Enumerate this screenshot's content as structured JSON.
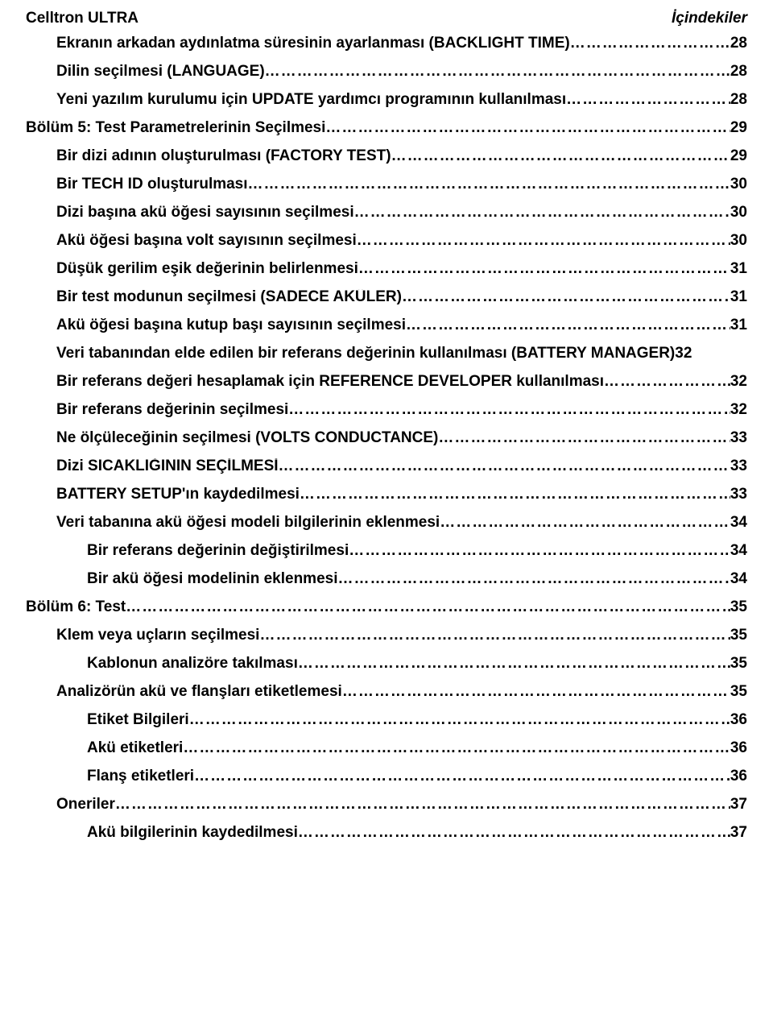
{
  "header": {
    "left": "Celltron ULTRA",
    "right": "İçindekiler"
  },
  "toc": [
    {
      "level": 1,
      "label": "Ekranın arkadan aydınlatma süresinin ayarlanması (BACKLIGHT TIME)",
      "page": "28"
    },
    {
      "level": 1,
      "label": "Dilin seçilmesi (LANGUAGE)",
      "page": "28"
    },
    {
      "level": 1,
      "label": "Yeni yazılım kurulumu için UPDATE yardımcı programının kullanılması",
      "page": "28"
    },
    {
      "level": 0,
      "label": "Bölüm 5: Test Parametrelerinin Seçilmesi",
      "page": "29"
    },
    {
      "level": 1,
      "label": "Bir dizi adının oluşturulması (FACTORY TEST)",
      "page": "29"
    },
    {
      "level": 1,
      "label": "Bir TECH ID oluşturulması",
      "page": "30"
    },
    {
      "level": 1,
      "label": "Dizi başına akü öğesi sayısının seçilmesi",
      "page": "30"
    },
    {
      "level": 1,
      "label": "Akü öğesi başına volt sayısının seçilmesi",
      "page": "30"
    },
    {
      "level": 1,
      "label": "Düşük gerilim eşik değerinin belirlenmesi",
      "page": "31"
    },
    {
      "level": 1,
      "label": "Bir test modunun seçilmesi (SADECE AKÜLER)",
      "page": "31"
    },
    {
      "level": 1,
      "label": "Akü öğesi başına kutup başı sayısının seçilmesi",
      "page": "31"
    },
    {
      "level": 1,
      "label": "Veri tabanından elde edilen bir referans değerinin kullanılması (BATTERY MANAGER)",
      "page": "32",
      "noLeader": true
    },
    {
      "level": 1,
      "label": "Bir referans değeri hesaplamak için REFERENCE DEVELOPER kullanılması",
      "page": "32"
    },
    {
      "level": 1,
      "label": "Bir referans değerinin seçilmesi",
      "page": "32"
    },
    {
      "level": 1,
      "label": "Ne ölçüleceğinin seçilmesi (VOLTS CONDUCTANCE)",
      "page": "33"
    },
    {
      "level": 1,
      "label": "Dizi SICAKLIĞININ SEÇİLMESİ",
      "page": "33"
    },
    {
      "level": 1,
      "label": "BATTERY SETUP'ın kaydedilmesi",
      "page": "33"
    },
    {
      "level": 1,
      "label": "Veri tabanına akü öğesi modeli bilgilerinin eklenmesi",
      "page": "34"
    },
    {
      "level": 2,
      "label": "Bir referans değerinin değiştirilmesi",
      "page": "34"
    },
    {
      "level": 2,
      "label": "Bir akü öğesi modelinin eklenmesi",
      "page": "34"
    },
    {
      "level": 0,
      "label": "Bölüm 6: Test",
      "page": "35"
    },
    {
      "level": 1,
      "label": "Klem veya uçların seçilmesi",
      "page": "35"
    },
    {
      "level": 2,
      "label": "Kablonun analizöre takılması",
      "page": "35"
    },
    {
      "level": 1,
      "label": "Analizörün akü ve flanşları etiketlemesi",
      "page": "35"
    },
    {
      "level": 2,
      "label": "Etiket Bilgileri",
      "page": "36"
    },
    {
      "level": 2,
      "label": "Akü etiketleri",
      "page": "36"
    },
    {
      "level": 2,
      "label": "Flanş etiketleri",
      "page": "36"
    },
    {
      "level": 1,
      "label": "Öneriler",
      "page": "37"
    },
    {
      "level": 2,
      "label": "Akü bilgilerinin kaydedilmesi",
      "page": "37"
    }
  ]
}
